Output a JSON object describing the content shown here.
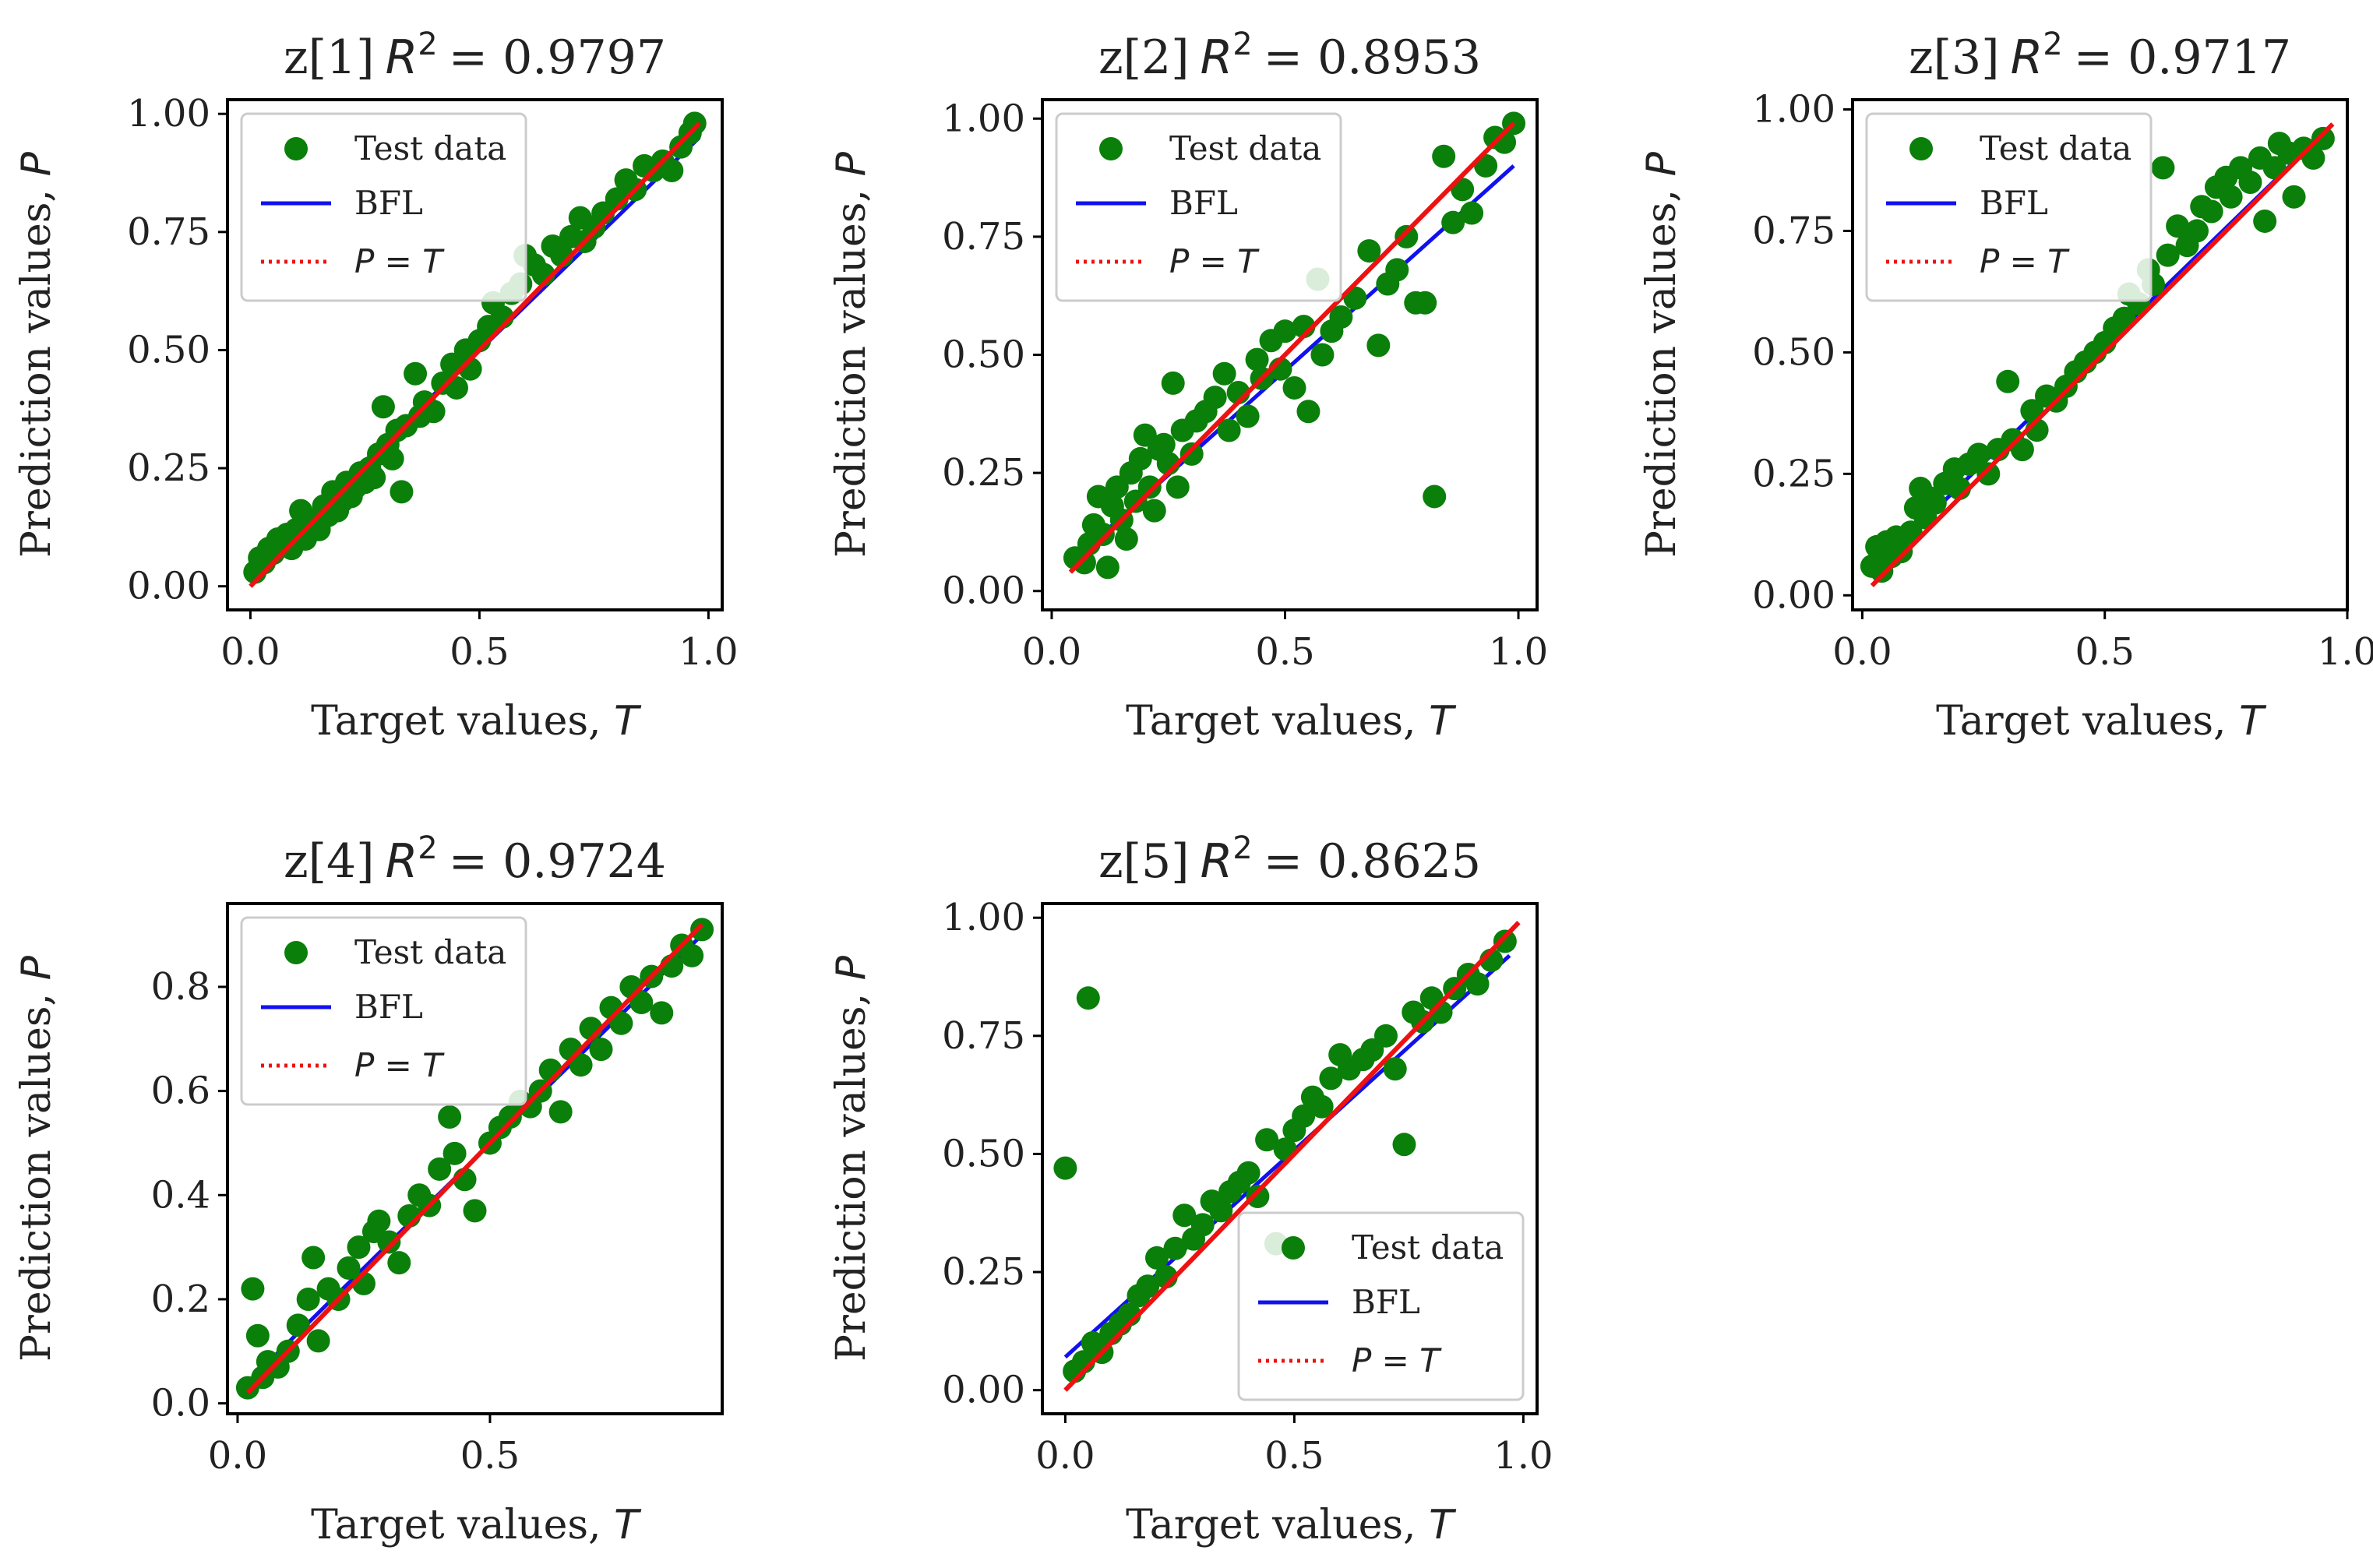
{
  "figure": {
    "xlabel": "Target values, ",
    "xlabel_var": "T",
    "ylabel": "Prediction values, ",
    "ylabel_var": "P"
  },
  "colors": {
    "points": "#0a7f0a",
    "bfl": "#1111ee",
    "identity": "#ee1111"
  },
  "legend": {
    "test_data": "Test data",
    "bfl": "BFL",
    "identity": "P = T"
  },
  "chart_data": [
    {
      "type": "scatter",
      "name": "z1",
      "title_prefix": "z[1]",
      "r2_label": "R",
      "r2_exp": "2",
      "r2_value": "= 0.9797",
      "xlim": [
        -0.05,
        1.03
      ],
      "ylim": [
        -0.05,
        1.03
      ],
      "xticks": [
        "0.0",
        "0.5",
        "1.0"
      ],
      "xtick_values": [
        0,
        0.5,
        1.0
      ],
      "yticks": [
        "0.00",
        "0.25",
        "0.50",
        "0.75",
        "1.00"
      ],
      "ytick_values": [
        0,
        0.25,
        0.5,
        0.75,
        1.0
      ],
      "legend_position": "top-left",
      "bfl": {
        "x": [
          0.0,
          0.98
        ],
        "y": [
          0.03,
          0.95
        ]
      },
      "identity": {
        "x": [
          0.0,
          0.98
        ],
        "y": [
          0.0,
          0.98
        ]
      },
      "points": [
        [
          0.01,
          0.03
        ],
        [
          0.02,
          0.06
        ],
        [
          0.03,
          0.05
        ],
        [
          0.04,
          0.08
        ],
        [
          0.05,
          0.07
        ],
        [
          0.06,
          0.1
        ],
        [
          0.07,
          0.09
        ],
        [
          0.08,
          0.11
        ],
        [
          0.09,
          0.08
        ],
        [
          0.1,
          0.12
        ],
        [
          0.11,
          0.16
        ],
        [
          0.12,
          0.1
        ],
        [
          0.13,
          0.13
        ],
        [
          0.14,
          0.14
        ],
        [
          0.15,
          0.12
        ],
        [
          0.16,
          0.17
        ],
        [
          0.17,
          0.15
        ],
        [
          0.18,
          0.2
        ],
        [
          0.19,
          0.16
        ],
        [
          0.2,
          0.18
        ],
        [
          0.21,
          0.22
        ],
        [
          0.22,
          0.19
        ],
        [
          0.23,
          0.21
        ],
        [
          0.24,
          0.24
        ],
        [
          0.25,
          0.22
        ],
        [
          0.26,
          0.25
        ],
        [
          0.27,
          0.23
        ],
        [
          0.28,
          0.28
        ],
        [
          0.29,
          0.38
        ],
        [
          0.3,
          0.3
        ],
        [
          0.31,
          0.27
        ],
        [
          0.32,
          0.33
        ],
        [
          0.33,
          0.2
        ],
        [
          0.34,
          0.34
        ],
        [
          0.36,
          0.45
        ],
        [
          0.37,
          0.36
        ],
        [
          0.38,
          0.39
        ],
        [
          0.4,
          0.37
        ],
        [
          0.42,
          0.43
        ],
        [
          0.44,
          0.47
        ],
        [
          0.45,
          0.42
        ],
        [
          0.47,
          0.5
        ],
        [
          0.48,
          0.46
        ],
        [
          0.5,
          0.52
        ],
        [
          0.52,
          0.55
        ],
        [
          0.53,
          0.6
        ],
        [
          0.55,
          0.57
        ],
        [
          0.57,
          0.62
        ],
        [
          0.59,
          0.64
        ],
        [
          0.6,
          0.7
        ],
        [
          0.62,
          0.68
        ],
        [
          0.64,
          0.66
        ],
        [
          0.66,
          0.72
        ],
        [
          0.68,
          0.7
        ],
        [
          0.7,
          0.74
        ],
        [
          0.72,
          0.78
        ],
        [
          0.73,
          0.73
        ],
        [
          0.75,
          0.76
        ],
        [
          0.77,
          0.79
        ],
        [
          0.8,
          0.82
        ],
        [
          0.82,
          0.86
        ],
        [
          0.84,
          0.84
        ],
        [
          0.86,
          0.89
        ],
        [
          0.88,
          0.88
        ],
        [
          0.9,
          0.9
        ],
        [
          0.92,
          0.88
        ],
        [
          0.94,
          0.93
        ],
        [
          0.96,
          0.96
        ],
        [
          0.97,
          0.98
        ]
      ]
    },
    {
      "type": "scatter",
      "name": "z2",
      "title_prefix": "z[2]",
      "r2_label": "R",
      "r2_exp": "2",
      "r2_value": "= 0.8953",
      "xlim": [
        -0.02,
        1.04
      ],
      "ylim": [
        -0.04,
        1.04
      ],
      "xticks": [
        "0.0",
        "0.5",
        "1.0"
      ],
      "xtick_values": [
        0,
        0.5,
        1.0
      ],
      "yticks": [
        "0.00",
        "0.25",
        "0.50",
        "0.75",
        "1.00"
      ],
      "ytick_values": [
        0,
        0.25,
        0.5,
        0.75,
        1.0
      ],
      "legend_position": "top-left",
      "bfl": {
        "x": [
          0.04,
          0.99
        ],
        "y": [
          0.06,
          0.9
        ]
      },
      "identity": {
        "x": [
          0.04,
          0.99
        ],
        "y": [
          0.04,
          0.99
        ]
      },
      "points": [
        [
          0.05,
          0.07
        ],
        [
          0.07,
          0.06
        ],
        [
          0.08,
          0.1
        ],
        [
          0.09,
          0.14
        ],
        [
          0.1,
          0.2
        ],
        [
          0.11,
          0.12
        ],
        [
          0.12,
          0.05
        ],
        [
          0.13,
          0.18
        ],
        [
          0.14,
          0.22
        ],
        [
          0.15,
          0.15
        ],
        [
          0.16,
          0.11
        ],
        [
          0.17,
          0.25
        ],
        [
          0.18,
          0.19
        ],
        [
          0.19,
          0.28
        ],
        [
          0.2,
          0.33
        ],
        [
          0.21,
          0.22
        ],
        [
          0.22,
          0.17
        ],
        [
          0.23,
          0.3
        ],
        [
          0.24,
          0.31
        ],
        [
          0.25,
          0.27
        ],
        [
          0.26,
          0.44
        ],
        [
          0.27,
          0.22
        ],
        [
          0.28,
          0.34
        ],
        [
          0.3,
          0.29
        ],
        [
          0.31,
          0.36
        ],
        [
          0.33,
          0.38
        ],
        [
          0.35,
          0.41
        ],
        [
          0.37,
          0.46
        ],
        [
          0.38,
          0.34
        ],
        [
          0.4,
          0.42
        ],
        [
          0.42,
          0.37
        ],
        [
          0.44,
          0.49
        ],
        [
          0.45,
          0.45
        ],
        [
          0.47,
          0.53
        ],
        [
          0.49,
          0.47
        ],
        [
          0.5,
          0.55
        ],
        [
          0.52,
          0.43
        ],
        [
          0.54,
          0.56
        ],
        [
          0.55,
          0.38
        ],
        [
          0.57,
          0.66
        ],
        [
          0.58,
          0.5
        ],
        [
          0.6,
          0.55
        ],
        [
          0.62,
          0.58
        ],
        [
          0.65,
          0.62
        ],
        [
          0.68,
          0.72
        ],
        [
          0.7,
          0.52
        ],
        [
          0.72,
          0.65
        ],
        [
          0.74,
          0.68
        ],
        [
          0.76,
          0.75
        ],
        [
          0.78,
          0.61
        ],
        [
          0.8,
          0.61
        ],
        [
          0.82,
          0.2
        ],
        [
          0.84,
          0.92
        ],
        [
          0.86,
          0.78
        ],
        [
          0.88,
          0.85
        ],
        [
          0.9,
          0.8
        ],
        [
          0.93,
          0.9
        ],
        [
          0.95,
          0.96
        ],
        [
          0.97,
          0.95
        ],
        [
          0.99,
          0.99
        ]
      ]
    },
    {
      "type": "scatter",
      "name": "z3",
      "title_prefix": "z[3]",
      "r2_label": "R",
      "r2_exp": "2",
      "r2_value": "= 0.9717",
      "xlim": [
        -0.02,
        1.0
      ],
      "ylim": [
        -0.03,
        1.02
      ],
      "xticks": [
        "0.0",
        "0.5",
        "1.0"
      ],
      "xtick_values": [
        0,
        0.5,
        1.0
      ],
      "yticks": [
        "0.00",
        "0.25",
        "0.50",
        "0.75",
        "1.00"
      ],
      "ytick_values": [
        0,
        0.25,
        0.5,
        0.75,
        1.0
      ],
      "legend_position": "top-left",
      "bfl": {
        "x": [
          0.02,
          0.95
        ],
        "y": [
          0.05,
          0.95
        ]
      },
      "identity": {
        "x": [
          0.02,
          0.97
        ],
        "y": [
          0.02,
          0.97
        ]
      },
      "points": [
        [
          0.02,
          0.06
        ],
        [
          0.03,
          0.1
        ],
        [
          0.04,
          0.05
        ],
        [
          0.05,
          0.11
        ],
        [
          0.06,
          0.08
        ],
        [
          0.07,
          0.12
        ],
        [
          0.08,
          0.09
        ],
        [
          0.1,
          0.13
        ],
        [
          0.11,
          0.18
        ],
        [
          0.12,
          0.22
        ],
        [
          0.13,
          0.16
        ],
        [
          0.14,
          0.2
        ],
        [
          0.15,
          0.19
        ],
        [
          0.17,
          0.23
        ],
        [
          0.19,
          0.26
        ],
        [
          0.2,
          0.22
        ],
        [
          0.22,
          0.27
        ],
        [
          0.24,
          0.29
        ],
        [
          0.26,
          0.25
        ],
        [
          0.28,
          0.3
        ],
        [
          0.3,
          0.44
        ],
        [
          0.31,
          0.32
        ],
        [
          0.33,
          0.3
        ],
        [
          0.35,
          0.38
        ],
        [
          0.36,
          0.34
        ],
        [
          0.38,
          0.41
        ],
        [
          0.4,
          0.4
        ],
        [
          0.42,
          0.43
        ],
        [
          0.44,
          0.46
        ],
        [
          0.46,
          0.48
        ],
        [
          0.48,
          0.5
        ],
        [
          0.5,
          0.52
        ],
        [
          0.52,
          0.55
        ],
        [
          0.54,
          0.57
        ],
        [
          0.55,
          0.62
        ],
        [
          0.57,
          0.6
        ],
        [
          0.59,
          0.67
        ],
        [
          0.6,
          0.64
        ],
        [
          0.62,
          0.88
        ],
        [
          0.63,
          0.7
        ],
        [
          0.65,
          0.76
        ],
        [
          0.67,
          0.72
        ],
        [
          0.69,
          0.75
        ],
        [
          0.7,
          0.8
        ],
        [
          0.72,
          0.79
        ],
        [
          0.73,
          0.84
        ],
        [
          0.75,
          0.86
        ],
        [
          0.76,
          0.82
        ],
        [
          0.78,
          0.88
        ],
        [
          0.8,
          0.85
        ],
        [
          0.82,
          0.9
        ],
        [
          0.83,
          0.77
        ],
        [
          0.85,
          0.88
        ],
        [
          0.86,
          0.93
        ],
        [
          0.88,
          0.91
        ],
        [
          0.89,
          0.82
        ],
        [
          0.91,
          0.92
        ],
        [
          0.93,
          0.9
        ],
        [
          0.95,
          0.94
        ]
      ]
    },
    {
      "type": "scatter",
      "name": "z4",
      "title_prefix": "z[4]",
      "r2_label": "R",
      "r2_exp": "2",
      "r2_value": "= 0.9724",
      "xlim": [
        -0.02,
        0.96
      ],
      "ylim": [
        -0.02,
        0.96
      ],
      "xticks": [
        "0.0",
        "0.5"
      ],
      "xtick_values": [
        0,
        0.5
      ],
      "yticks": [
        "0.0",
        "0.2",
        "0.4",
        "0.6",
        "0.8"
      ],
      "ytick_values": [
        0,
        0.2,
        0.4,
        0.6,
        0.8
      ],
      "legend_position": "top-left",
      "bfl": {
        "x": [
          0.02,
          0.92
        ],
        "y": [
          0.04,
          0.9
        ]
      },
      "identity": {
        "x": [
          0.02,
          0.92
        ],
        "y": [
          0.02,
          0.92
        ]
      },
      "points": [
        [
          0.02,
          0.03
        ],
        [
          0.03,
          0.22
        ],
        [
          0.04,
          0.13
        ],
        [
          0.05,
          0.05
        ],
        [
          0.06,
          0.08
        ],
        [
          0.08,
          0.07
        ],
        [
          0.1,
          0.1
        ],
        [
          0.12,
          0.15
        ],
        [
          0.14,
          0.2
        ],
        [
          0.15,
          0.28
        ],
        [
          0.16,
          0.12
        ],
        [
          0.18,
          0.22
        ],
        [
          0.2,
          0.2
        ],
        [
          0.22,
          0.26
        ],
        [
          0.24,
          0.3
        ],
        [
          0.25,
          0.23
        ],
        [
          0.27,
          0.33
        ],
        [
          0.28,
          0.35
        ],
        [
          0.3,
          0.31
        ],
        [
          0.32,
          0.27
        ],
        [
          0.34,
          0.36
        ],
        [
          0.36,
          0.4
        ],
        [
          0.38,
          0.38
        ],
        [
          0.4,
          0.45
        ],
        [
          0.42,
          0.55
        ],
        [
          0.43,
          0.48
        ],
        [
          0.45,
          0.43
        ],
        [
          0.47,
          0.37
        ],
        [
          0.5,
          0.5
        ],
        [
          0.52,
          0.53
        ],
        [
          0.54,
          0.55
        ],
        [
          0.56,
          0.58
        ],
        [
          0.58,
          0.57
        ],
        [
          0.6,
          0.6
        ],
        [
          0.62,
          0.64
        ],
        [
          0.64,
          0.56
        ],
        [
          0.66,
          0.68
        ],
        [
          0.68,
          0.65
        ],
        [
          0.7,
          0.72
        ],
        [
          0.72,
          0.68
        ],
        [
          0.74,
          0.76
        ],
        [
          0.76,
          0.73
        ],
        [
          0.78,
          0.8
        ],
        [
          0.8,
          0.77
        ],
        [
          0.82,
          0.82
        ],
        [
          0.84,
          0.75
        ],
        [
          0.86,
          0.84
        ],
        [
          0.88,
          0.88
        ],
        [
          0.9,
          0.86
        ],
        [
          0.92,
          0.91
        ]
      ]
    },
    {
      "type": "scatter",
      "name": "z5",
      "title_prefix": "z[5]",
      "r2_label": "R",
      "r2_exp": "2",
      "r2_value": "= 0.8625",
      "xlim": [
        -0.05,
        1.03
      ],
      "ylim": [
        -0.05,
        1.03
      ],
      "xticks": [
        "0.0",
        "0.5",
        "1.0"
      ],
      "xtick_values": [
        0,
        0.5,
        1.0
      ],
      "yticks": [
        "0.00",
        "0.25",
        "0.50",
        "0.75",
        "1.00"
      ],
      "ytick_values": [
        0,
        0.25,
        0.5,
        0.75,
        1.0
      ],
      "legend_position": "lower-right",
      "bfl": {
        "x": [
          0.0,
          0.97
        ],
        "y": [
          0.07,
          0.92
        ]
      },
      "identity": {
        "x": [
          0.0,
          0.99
        ],
        "y": [
          0.0,
          0.99
        ]
      },
      "points": [
        [
          0.0,
          0.47
        ],
        [
          0.02,
          0.04
        ],
        [
          0.04,
          0.06
        ],
        [
          0.05,
          0.83
        ],
        [
          0.06,
          0.1
        ],
        [
          0.08,
          0.08
        ],
        [
          0.1,
          0.12
        ],
        [
          0.12,
          0.14
        ],
        [
          0.14,
          0.16
        ],
        [
          0.16,
          0.2
        ],
        [
          0.18,
          0.22
        ],
        [
          0.2,
          0.28
        ],
        [
          0.22,
          0.24
        ],
        [
          0.24,
          0.3
        ],
        [
          0.26,
          0.37
        ],
        [
          0.28,
          0.32
        ],
        [
          0.3,
          0.35
        ],
        [
          0.32,
          0.4
        ],
        [
          0.34,
          0.38
        ],
        [
          0.36,
          0.42
        ],
        [
          0.38,
          0.44
        ],
        [
          0.4,
          0.46
        ],
        [
          0.42,
          0.41
        ],
        [
          0.44,
          0.53
        ],
        [
          0.46,
          0.31
        ],
        [
          0.48,
          0.51
        ],
        [
          0.5,
          0.55
        ],
        [
          0.52,
          0.58
        ],
        [
          0.54,
          0.62
        ],
        [
          0.56,
          0.6
        ],
        [
          0.58,
          0.66
        ],
        [
          0.6,
          0.71
        ],
        [
          0.62,
          0.68
        ],
        [
          0.65,
          0.7
        ],
        [
          0.67,
          0.72
        ],
        [
          0.7,
          0.75
        ],
        [
          0.72,
          0.68
        ],
        [
          0.74,
          0.52
        ],
        [
          0.76,
          0.8
        ],
        [
          0.78,
          0.78
        ],
        [
          0.8,
          0.83
        ],
        [
          0.82,
          0.8
        ],
        [
          0.85,
          0.85
        ],
        [
          0.88,
          0.88
        ],
        [
          0.9,
          0.86
        ],
        [
          0.93,
          0.91
        ],
        [
          0.96,
          0.95
        ]
      ]
    }
  ]
}
